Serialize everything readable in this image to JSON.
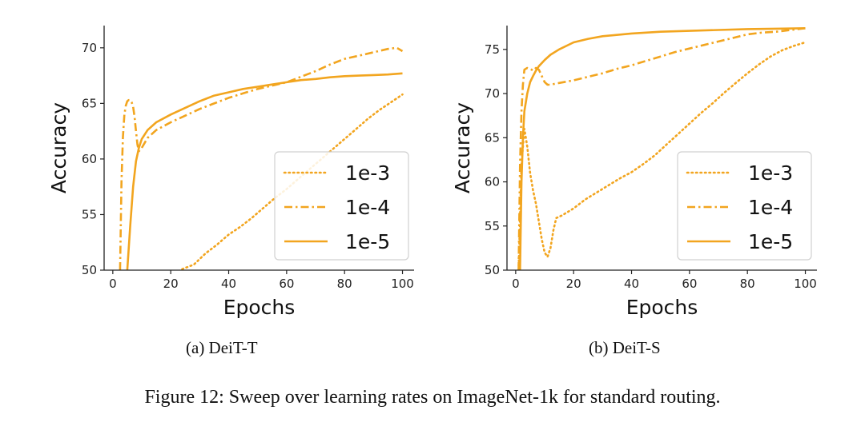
{
  "figure": {
    "caption": "Figure 12: Sweep over learning rates on ImageNet-1k for standard routing."
  },
  "colors": {
    "series": "#F2A51F",
    "axis": "#222222"
  },
  "chart_data": [
    {
      "type": "line",
      "subcaption": "(a) DeiT-T",
      "xlabel": "Epochs",
      "ylabel": "Accuracy",
      "xlim": [
        -3,
        104
      ],
      "ylim": [
        50,
        72
      ],
      "xticks": [
        0,
        20,
        40,
        60,
        80,
        100
      ],
      "yticks": [
        50,
        55,
        60,
        65,
        70
      ],
      "grid": false,
      "legend_position": "lower-right",
      "series": [
        {
          "name": "1e-3",
          "style": "dotted",
          "x": [
            20,
            24,
            28,
            32,
            36,
            40,
            44,
            48,
            52,
            56,
            60,
            64,
            68,
            72,
            76,
            80,
            84,
            88,
            92,
            96,
            100
          ],
          "y": [
            49.5,
            50.1,
            50.5,
            51.5,
            52.3,
            53.2,
            53.9,
            54.7,
            55.6,
            56.5,
            57.3,
            58.2,
            59.1,
            60.0,
            60.9,
            61.8,
            62.7,
            63.6,
            64.4,
            65.1,
            65.8
          ]
        },
        {
          "name": "1e-4",
          "style": "dashdot",
          "x": [
            2.5,
            3,
            3.5,
            4,
            4.5,
            5,
            5.5,
            6,
            6.5,
            7,
            7.5,
            8,
            8.5,
            9,
            10,
            12,
            15,
            20,
            25,
            30,
            35,
            40,
            45,
            50,
            55,
            60,
            65,
            70,
            75,
            80,
            85,
            90,
            95,
            98,
            100
          ],
          "y": [
            50,
            58,
            62,
            64,
            64.8,
            65.2,
            65.3,
            65.3,
            65.1,
            64.7,
            63.8,
            62.5,
            61.3,
            60.7,
            61.0,
            61.9,
            62.6,
            63.3,
            63.9,
            64.5,
            65.0,
            65.5,
            65.9,
            66.3,
            66.6,
            66.9,
            67.4,
            67.9,
            68.5,
            69.0,
            69.3,
            69.6,
            69.9,
            70.0,
            69.7
          ]
        },
        {
          "name": "1e-5",
          "style": "solid",
          "x": [
            5,
            6,
            7,
            8,
            9,
            10,
            12,
            15,
            20,
            25,
            30,
            35,
            40,
            45,
            50,
            55,
            60,
            65,
            70,
            75,
            80,
            85,
            90,
            95,
            100
          ],
          "y": [
            50,
            54,
            57.5,
            59.8,
            61.0,
            61.8,
            62.6,
            63.3,
            64.0,
            64.6,
            65.2,
            65.7,
            66.0,
            66.3,
            66.5,
            66.7,
            66.9,
            67.1,
            67.2,
            67.35,
            67.45,
            67.5,
            67.55,
            67.6,
            67.7
          ]
        }
      ]
    },
    {
      "type": "line",
      "subcaption": "(b) DeiT-S",
      "xlabel": "Epochs",
      "ylabel": "Accuracy",
      "xlim": [
        -3,
        104
      ],
      "ylim": [
        50,
        77.7
      ],
      "xticks": [
        0,
        20,
        40,
        60,
        80,
        100
      ],
      "yticks": [
        50,
        55,
        60,
        65,
        70,
        75
      ],
      "grid": false,
      "legend_position": "lower-right",
      "series": [
        {
          "name": "1e-3",
          "style": "dotted",
          "x": [
            1,
            2,
            3,
            4,
            5,
            6,
            7,
            8,
            9,
            10,
            11,
            12,
            13,
            14,
            16,
            18,
            20,
            24,
            28,
            32,
            36,
            40,
            44,
            48,
            52,
            56,
            60,
            64,
            68,
            72,
            76,
            80,
            84,
            88,
            92,
            96,
            100
          ],
          "y": [
            50,
            62,
            66,
            64,
            61,
            59,
            57.5,
            55.5,
            53.5,
            52,
            51.5,
            52.5,
            54.5,
            55.9,
            56.2,
            56.6,
            57.0,
            58.0,
            58.8,
            59.6,
            60.4,
            61.1,
            62.0,
            63.0,
            64.2,
            65.4,
            66.6,
            67.8,
            68.9,
            70.1,
            71.2,
            72.3,
            73.3,
            74.2,
            74.9,
            75.4,
            75.8
          ]
        },
        {
          "name": "1e-4",
          "style": "dashdot",
          "x": [
            1,
            1.5,
            2,
            2.5,
            3,
            4,
            5,
            6,
            7,
            8,
            9,
            10,
            11,
            12,
            15,
            20,
            25,
            30,
            35,
            40,
            45,
            50,
            55,
            60,
            65,
            70,
            75,
            80,
            85,
            90,
            95,
            100
          ],
          "y": [
            50,
            62,
            68,
            71,
            72.7,
            72.9,
            72.8,
            72.6,
            72.9,
            72.7,
            72.0,
            71.3,
            71.0,
            71.0,
            71.2,
            71.5,
            71.9,
            72.3,
            72.8,
            73.2,
            73.7,
            74.2,
            74.7,
            75.1,
            75.5,
            75.9,
            76.3,
            76.7,
            76.9,
            77.0,
            77.2,
            77.4
          ]
        },
        {
          "name": "1e-5",
          "style": "solid",
          "x": [
            1.5,
            2,
            2.5,
            3,
            4,
            5,
            6,
            7,
            8,
            10,
            12,
            15,
            20,
            25,
            30,
            40,
            50,
            60,
            70,
            80,
            90,
            100
          ],
          "y": [
            50,
            60,
            65,
            68,
            70,
            71.3,
            72.0,
            72.6,
            73.1,
            73.8,
            74.4,
            75.0,
            75.8,
            76.2,
            76.5,
            76.8,
            77.0,
            77.1,
            77.2,
            77.3,
            77.35,
            77.4
          ]
        }
      ]
    }
  ]
}
